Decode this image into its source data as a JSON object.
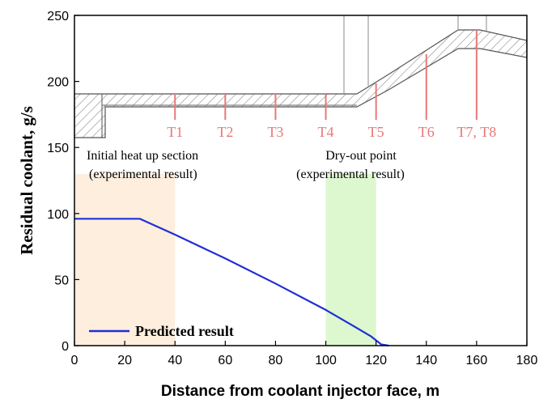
{
  "chart_data": {
    "type": "line",
    "xlabel": "Distance from coolant injector face, m",
    "ylabel": "Residual coolant, g/s",
    "xlim": [
      0,
      180
    ],
    "ylim": [
      0,
      250
    ],
    "xticks": [
      0,
      20,
      40,
      60,
      80,
      100,
      120,
      140,
      160,
      180
    ],
    "yticks": [
      0,
      50,
      100,
      150,
      200,
      250
    ],
    "grid": false,
    "legend": {
      "placement": "bottom-left",
      "entries": [
        "Predicted result"
      ]
    },
    "series": [
      {
        "name": "Predicted result",
        "color": "#1f2fd6",
        "x": [
          0,
          26,
          40,
          60,
          80,
          100,
          110,
          118,
          122,
          125
        ],
        "y": [
          96,
          96,
          84,
          66,
          47,
          27,
          16,
          7,
          1,
          0
        ]
      }
    ],
    "sensors": [
      {
        "label": "T1",
        "x": 40
      },
      {
        "label": "T2",
        "x": 60
      },
      {
        "label": "T3",
        "x": 80
      },
      {
        "label": "T4",
        "x": 100
      },
      {
        "label": "T5",
        "x": 120
      },
      {
        "label": "T6",
        "x": 140
      },
      {
        "label": "T7, T8",
        "x": 160
      }
    ],
    "regions": [
      {
        "name": "heatup",
        "label_line1": "Initial heat up section",
        "label_line2": "(experimental result)",
        "x_start": 0,
        "x_end": 40,
        "color": "#fdeede"
      },
      {
        "name": "dryout",
        "label_line1": "Dry-out point",
        "label_line2": "(experimental result)",
        "x_start": 100,
        "x_end": 120,
        "color": "#ddf7cf"
      }
    ],
    "annotation_color": "#e87878"
  }
}
